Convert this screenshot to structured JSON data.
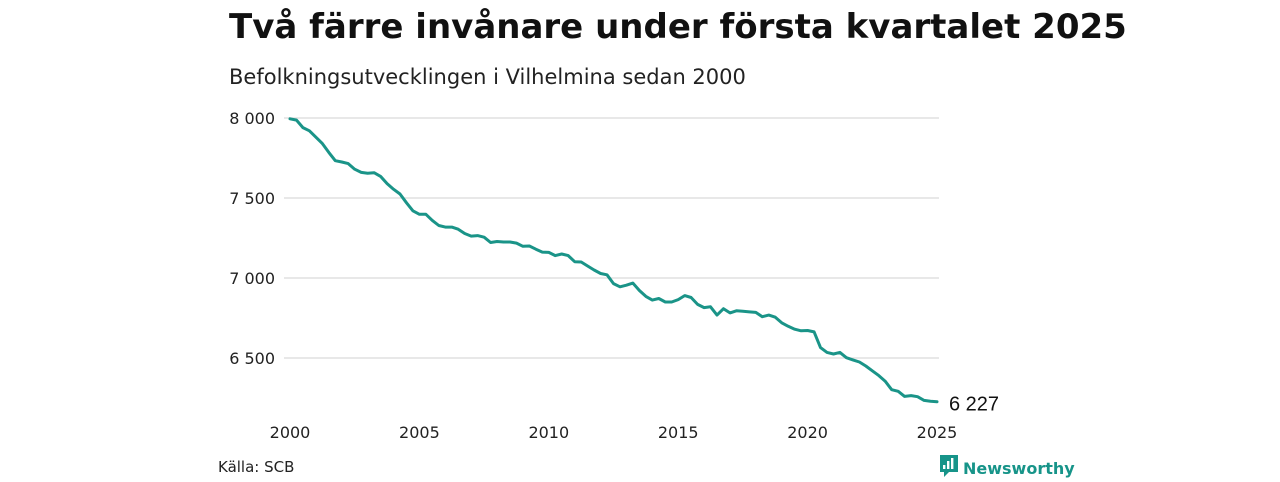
{
  "header": {
    "title": "Två färre invånare under första kvartalet 2025",
    "subtitle": "Befolkningsutvecklingen i Vilhelmina sedan 2000"
  },
  "footer": {
    "source": "Källa: SCB",
    "brand": "Newsworthy"
  },
  "colors": {
    "line": "#1a9488",
    "grid": "#d9d9d9",
    "brand": "#179489"
  },
  "chart_data": {
    "type": "line",
    "title": "Två färre invånare under första kvartalet 2025",
    "subtitle": "Befolkningsutvecklingen i Vilhelmina sedan 2000",
    "xlabel": "",
    "ylabel": "",
    "x_ticks": [
      "2000",
      "2005",
      "2010",
      "2015",
      "2020",
      "2025"
    ],
    "y_ticks": [
      "6 500",
      "7 000",
      "7 500",
      "8 000"
    ],
    "y_tick_values": [
      6500,
      7000,
      7500,
      8000
    ],
    "xlim": [
      2000,
      2025
    ],
    "ylim": [
      6200,
      8060
    ],
    "grid": "horizontal",
    "end_label": "6 227",
    "series": [
      {
        "x": [
          2000.0,
          2000.25,
          2000.5,
          2000.75,
          2001.0,
          2001.25,
          2001.5,
          2001.75,
          2002.0,
          2002.25,
          2002.5,
          2002.75,
          2003.0,
          2003.25,
          2003.5,
          2003.75,
          2004.0,
          2004.25,
          2004.5,
          2004.75,
          2005.0,
          2005.25,
          2005.5,
          2005.75,
          2006.0,
          2006.25,
          2006.5,
          2006.75,
          2007.0,
          2007.25,
          2007.5,
          2007.75,
          2008.0,
          2008.25,
          2008.5,
          2008.75,
          2009.0,
          2009.25,
          2009.5,
          2009.75,
          2010.0,
          2010.25,
          2010.5,
          2010.75,
          2011.0,
          2011.25,
          2011.5,
          2011.75,
          2012.0,
          2012.25,
          2012.5,
          2012.75,
          2013.0,
          2013.25,
          2013.5,
          2013.75,
          2014.0,
          2014.25,
          2014.5,
          2014.75,
          2015.0,
          2015.25,
          2015.5,
          2015.75,
          2016.0,
          2016.25,
          2016.5,
          2016.75,
          2017.0,
          2017.25,
          2017.5,
          2017.75,
          2018.0,
          2018.25,
          2018.5,
          2018.75,
          2019.0,
          2019.25,
          2019.5,
          2019.75,
          2020.0,
          2020.25,
          2020.5,
          2020.75,
          2021.0,
          2021.25,
          2021.5,
          2021.75,
          2022.0,
          2022.25,
          2022.5,
          2022.75,
          2023.0,
          2023.25,
          2023.5,
          2023.75,
          2024.0,
          2024.25,
          2024.5,
          2024.75,
          2025.0
        ],
        "y": [
          7995,
          7987,
          7940,
          7920,
          7880,
          7840,
          7785,
          7733,
          7725,
          7715,
          7680,
          7660,
          7655,
          7658,
          7635,
          7590,
          7555,
          7525,
          7470,
          7420,
          7398,
          7398,
          7360,
          7328,
          7318,
          7318,
          7305,
          7278,
          7262,
          7265,
          7255,
          7222,
          7228,
          7225,
          7225,
          7218,
          7198,
          7200,
          7180,
          7162,
          7160,
          7140,
          7150,
          7140,
          7102,
          7100,
          7075,
          7050,
          7028,
          7020,
          6965,
          6945,
          6955,
          6968,
          6922,
          6885,
          6862,
          6872,
          6850,
          6850,
          6865,
          6890,
          6878,
          6835,
          6815,
          6820,
          6768,
          6808,
          6782,
          6795,
          6792,
          6788,
          6785,
          6758,
          6768,
          6755,
          6720,
          6698,
          6680,
          6670,
          6672,
          6663,
          6565,
          6535,
          6525,
          6535,
          6502,
          6488,
          6475,
          6450,
          6420,
          6390,
          6355,
          6302,
          6292,
          6260,
          6265,
          6258,
          6235,
          6230,
          6227
        ]
      }
    ]
  }
}
